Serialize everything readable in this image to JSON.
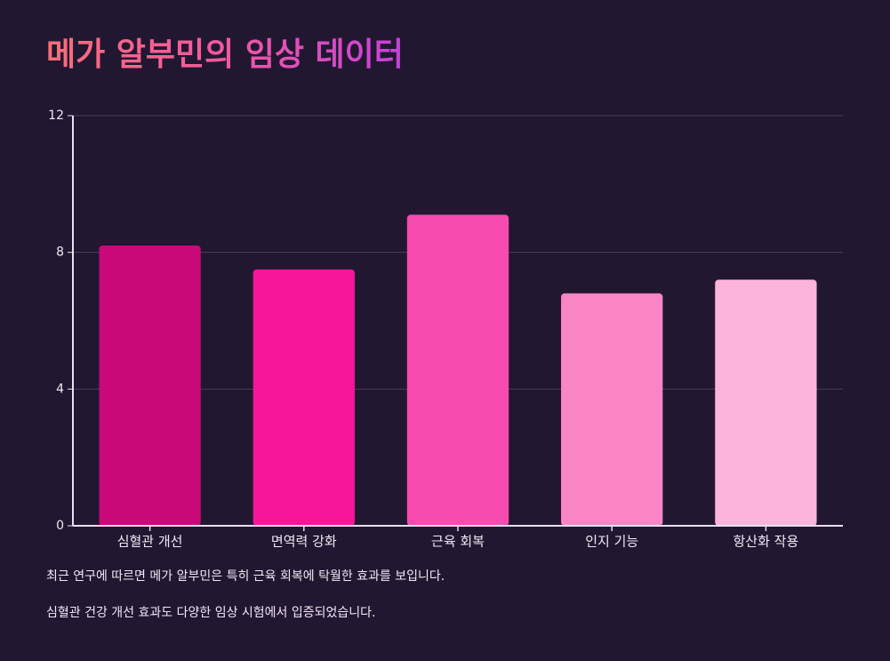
{
  "chart_data": {
    "type": "bar",
    "title": "메가 알부민의 임상 데이터",
    "categories": [
      "심혈관 개선",
      "면역력 강화",
      "근육 회복",
      "인지 기능",
      "항산화 작용"
    ],
    "values": [
      8.2,
      7.5,
      9.1,
      6.8,
      7.2
    ],
    "colors": [
      "#c9087a",
      "#f7159a",
      "#f84bb0",
      "#f985c6",
      "#fcb3dc"
    ],
    "ylim": [
      0,
      12
    ],
    "yticks": [
      0,
      4,
      8,
      12
    ],
    "grid": true,
    "annotations": [
      "최근 연구에 따르면 메가 알부민은 특히 근육 회복에 탁월한 효과를 보입니다.",
      "심혈관 건강 개선 효과도 다양한 임상 시험에서 입증되었습니다."
    ]
  }
}
